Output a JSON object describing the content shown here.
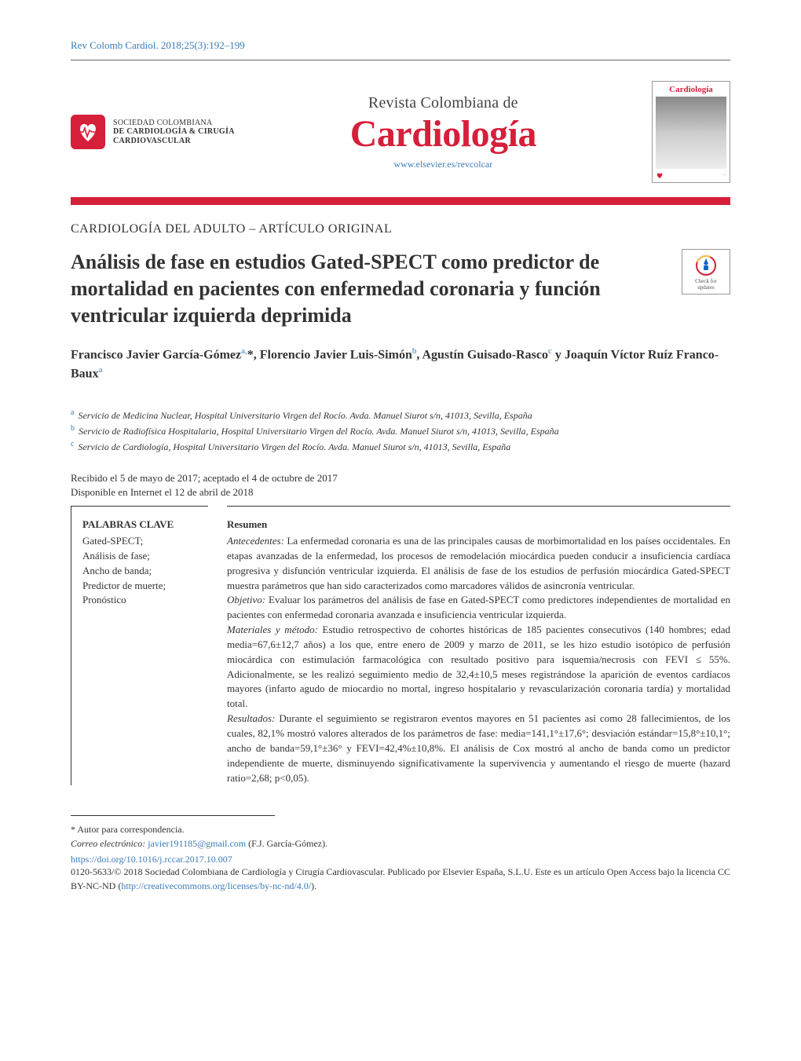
{
  "citation": "Rev Colomb Cardiol. 2018;25(3):192–199",
  "society": {
    "line1": "SOCIEDAD COLOMBIANA",
    "line2": "DE CARDIOLOGÍA & CIRUGÍA",
    "line3": "CARDIOVASCULAR"
  },
  "journal": {
    "pretitle": "Revista Colombiana de",
    "title": "Cardiología",
    "url": "www.elsevier.es/revcolcar"
  },
  "cover_thumb_title": "Cardiología",
  "section_label": "CARDIOLOGÍA DEL ADULTO – ARTÍCULO ORIGINAL",
  "article_title": "Análisis de fase en estudios Gated-SPECT como predictor de mortalidad en pacientes con enfermedad coronaria y función ventricular izquierda deprimida",
  "crossmark_label": "Check for updates",
  "authors_html": "Francisco Javier García-Gómez<sup class='affil-link'>a,</sup>*, Florencio Javier Luis-Simón<sup class='affil-link'>b</sup>, Agustín Guisado-Rasco<sup class='affil-link'>c</sup> y Joaquín Víctor Ruíz Franco-Baux<sup class='affil-link'>a</sup>",
  "affiliations": [
    {
      "sup": "a",
      "text": "Servicio de Medicina Nuclear, Hospital Universitario Virgen del Rocío. Avda. Manuel Siurot s/n, 41013, Sevilla, España"
    },
    {
      "sup": "b",
      "text": "Servicio de Radiofísica Hospitalaria, Hospital Universitario Virgen del Rocío. Avda. Manuel Siurot s/n, 41013, Sevilla, España"
    },
    {
      "sup": "c",
      "text": "Servicio de Cardiología, Hospital Universitario Virgen del Rocío. Avda. Manuel Siurot s/n, 41013, Sevilla, España"
    }
  ],
  "dates": {
    "received": "Recibido el 5 de mayo de 2017; aceptado el 4 de octubre de 2017",
    "online": "Disponible en Internet el 12 de abril de 2018"
  },
  "keywords": {
    "heading": "PALABRAS CLAVE",
    "items": [
      "Gated-SPECT;",
      "Análisis de fase;",
      "Ancho de banda;",
      "Predictor de muerte;",
      "Pronóstico"
    ]
  },
  "abstract": {
    "heading": "Resumen",
    "paragraphs": [
      {
        "runin": "Antecedentes:",
        "text": " La enfermedad coronaria es una de las principales causas de morbimortalidad en los países occidentales. En etapas avanzadas de la enfermedad, los procesos de remodelación miocárdica pueden conducir a insuficiencia cardíaca progresiva y disfunción ventricular izquierda. El análisis de fase de los estudios de perfusión miocárdica Gated-SPECT muestra parámetros que han sido caracterizados como marcadores válidos de asincronía ventricular."
      },
      {
        "runin": "Objetivo:",
        "text": " Evaluar los parámetros del análisis de fase en Gated-SPECT como predictores independientes de mortalidad en pacientes con enfermedad coronaria avanzada e insuficiencia ventricular izquierda."
      },
      {
        "runin": "Materiales y método:",
        "text": " Estudio retrospectivo de cohortes históricas de 185 pacientes consecutivos (140 hombres; edad media=67,6±12,7 años) a los que, entre enero de 2009 y marzo de 2011, se les hizo estudio isotópico de perfusión miocárdica con estimulación farmacológica con resultado positivo para isquemia/necrosis con FEVI ≤ 55%. Adicionalmente, se les realizó seguimiento medio de 32,4±10,5 meses registrándose la aparición de eventos cardíacos mayores (infarto agudo de miocardio no mortal, ingreso hospitalario y revascularización coronaria tardía) y mortalidad total."
      },
      {
        "runin": "Resultados:",
        "text": " Durante el seguimiento se registraron eventos mayores en 51 pacientes así como 28 fallecimientos, de los cuales, 82,1% mostró valores alterados de los parámetros de fase: media=141,1°±17,6°; desviación estándar=15,8°±10,1°; ancho de banda=59,1°±36° y FEVI=42,4%±10,8%. El análisis de Cox mostró al ancho de banda como un predictor independiente de muerte, disminuyendo significativamente la supervivencia y aumentando el riesgo de muerte (hazard ratio=2,68; p<0,05)."
      }
    ]
  },
  "correspondence": {
    "label": "* Autor para correspondencia.",
    "email_label": "Correo electrónico:",
    "email": "javier191185@gmail.com",
    "author": "(F.J. García-Gómez)."
  },
  "doi": "https://doi.org/10.1016/j.rccar.2017.10.007",
  "copyright": "0120-5633/© 2018 Sociedad Colombiana de Cardiología y Cirugía Cardiovascular. Publicado por Elsevier España, S.L.U. Este es un artículo Open Access bajo la licencia CC BY-NC-ND (",
  "copyright_link": "http://creativecommons.org/licenses/by-nc-nd/4.0/",
  "copyright_tail": ").",
  "colors": {
    "brand_red": "#d61f3a",
    "link_blue": "#3b7bb8",
    "text": "#333333"
  }
}
